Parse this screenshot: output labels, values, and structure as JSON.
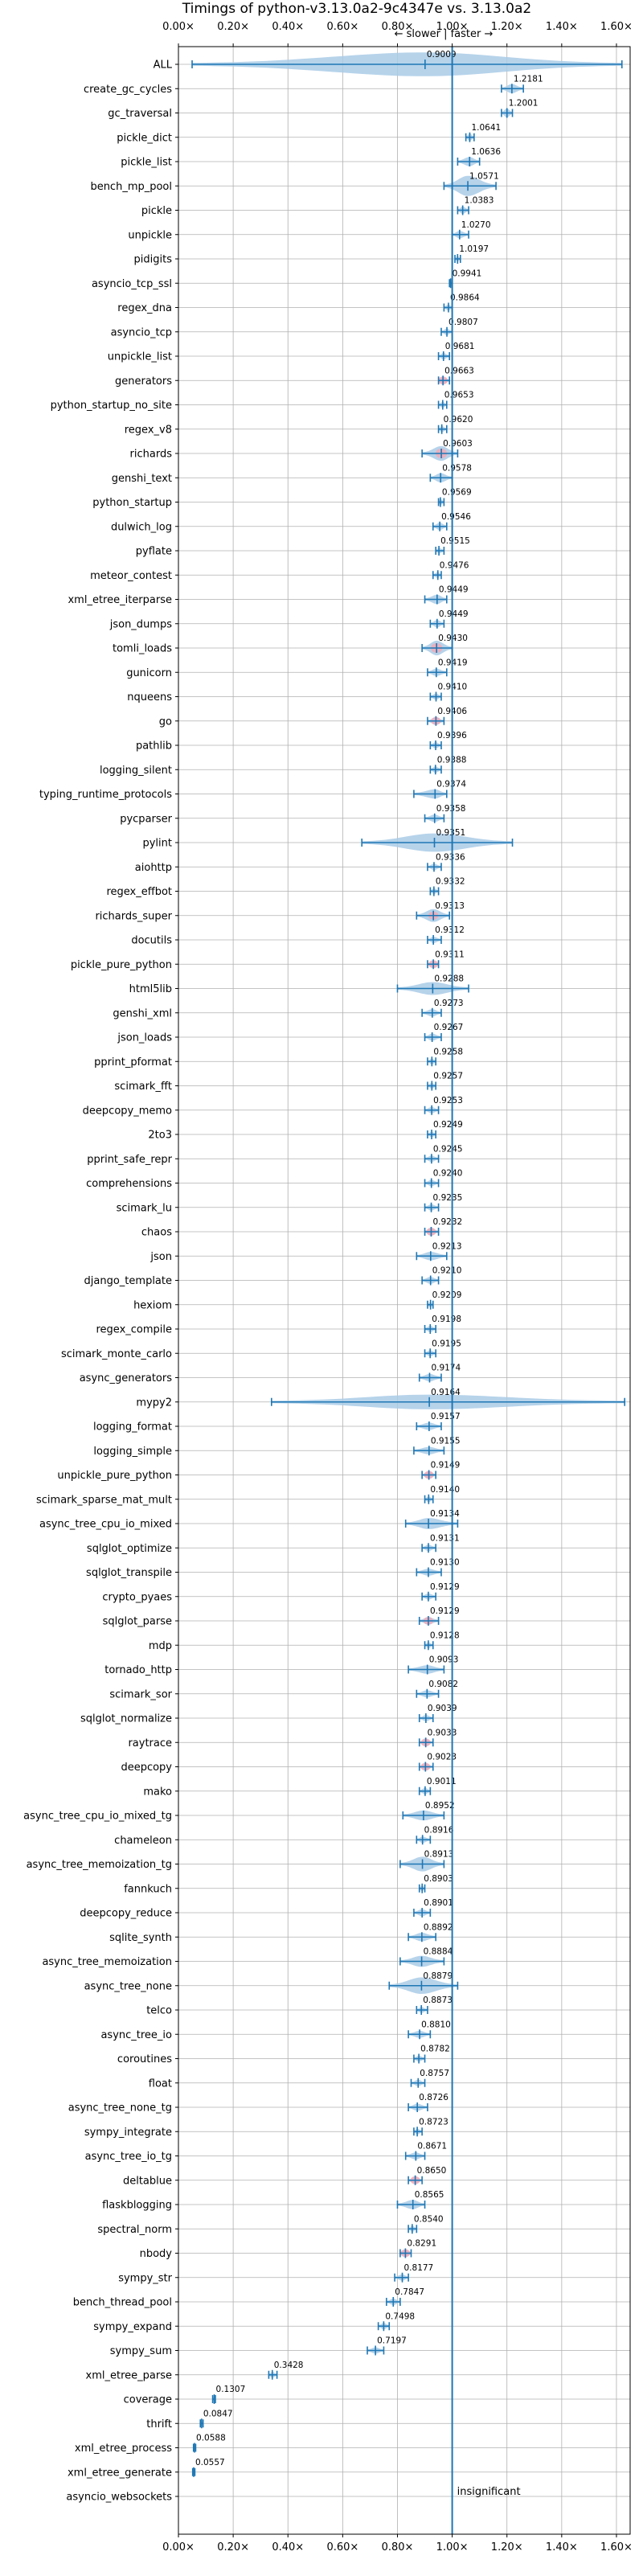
{
  "chart_data": {
    "type": "violin",
    "title": "Timings of python-v3.13.0a2-9c4347e vs. 3.13.0a2",
    "direction_label": "← slower | faster →",
    "xlim": [
      0.0,
      1.65
    ],
    "xticks": [
      "0.00×",
      "0.20×",
      "0.40×",
      "0.60×",
      "0.80×",
      "1.00×",
      "1.20×",
      "1.40×",
      "1.60×"
    ],
    "xtick_values": [
      0.0,
      0.2,
      0.4,
      0.6,
      0.8,
      1.0,
      1.2,
      1.4,
      1.6
    ],
    "reference_line": 1.0,
    "grid": true,
    "insignificant_label": "insignificant",
    "colors": {
      "violin": "#a9cbe6",
      "line": "#1f77b4",
      "highlight": "#f4a9b5",
      "grid": "#b0b0b0"
    },
    "benchmarks": [
      {
        "name": "ALL",
        "value": 0.9009,
        "label": "0.9009",
        "min": 0.05,
        "max": 1.62,
        "width": 0.06,
        "hl": false
      },
      {
        "name": "create_gc_cycles",
        "value": 1.2181,
        "label": "1.2181",
        "min": 1.18,
        "max": 1.26,
        "width": 0.02,
        "hl": false
      },
      {
        "name": "gc_traversal",
        "value": 1.2001,
        "label": "1.2001",
        "min": 1.18,
        "max": 1.22,
        "width": 0.02,
        "hl": false
      },
      {
        "name": "pickle_dict",
        "value": 1.0641,
        "label": "1.0641",
        "min": 1.05,
        "max": 1.08,
        "width": 0.015,
        "hl": false
      },
      {
        "name": "pickle_list",
        "value": 1.0636,
        "label": "1.0636",
        "min": 1.02,
        "max": 1.1,
        "width": 0.02,
        "hl": false
      },
      {
        "name": "bench_mp_pool",
        "value": 1.0571,
        "label": "1.0571",
        "min": 0.97,
        "max": 1.16,
        "width": 0.05,
        "hl": false
      },
      {
        "name": "pickle",
        "value": 1.0383,
        "label": "1.0383",
        "min": 1.02,
        "max": 1.06,
        "width": 0.015,
        "hl": false
      },
      {
        "name": "unpickle",
        "value": 1.027,
        "label": "1.0270",
        "min": 1.0,
        "max": 1.06,
        "width": 0.015,
        "hl": false
      },
      {
        "name": "pidigits",
        "value": 1.0197,
        "label": "1.0197",
        "min": 1.01,
        "max": 1.03,
        "width": 0.01,
        "hl": false
      },
      {
        "name": "asyncio_tcp_ssl",
        "value": 0.9941,
        "label": "0.9941",
        "min": 0.99,
        "max": 1.0,
        "width": 0.008,
        "hl": false
      },
      {
        "name": "regex_dna",
        "value": 0.9864,
        "label": "0.9864",
        "min": 0.97,
        "max": 1.0,
        "width": 0.01,
        "hl": false
      },
      {
        "name": "asyncio_tcp",
        "value": 0.9807,
        "label": "0.9807",
        "min": 0.96,
        "max": 1.0,
        "width": 0.012,
        "hl": false
      },
      {
        "name": "unpickle_list",
        "value": 0.9681,
        "label": "0.9681",
        "min": 0.95,
        "max": 0.99,
        "width": 0.012,
        "hl": false
      },
      {
        "name": "generators",
        "value": 0.9663,
        "label": "0.9663",
        "min": 0.95,
        "max": 0.99,
        "width": 0.014,
        "hl": true
      },
      {
        "name": "python_startup_no_site",
        "value": 0.9653,
        "label": "0.9653",
        "min": 0.95,
        "max": 0.98,
        "width": 0.01,
        "hl": false
      },
      {
        "name": "regex_v8",
        "value": 0.962,
        "label": "0.9620",
        "min": 0.95,
        "max": 0.98,
        "width": 0.01,
        "hl": false
      },
      {
        "name": "richards",
        "value": 0.9603,
        "label": "0.9603",
        "min": 0.89,
        "max": 1.02,
        "width": 0.035,
        "hl": true
      },
      {
        "name": "genshi_text",
        "value": 0.9578,
        "label": "0.9578",
        "min": 0.92,
        "max": 1.0,
        "width": 0.02,
        "hl": false
      },
      {
        "name": "python_startup",
        "value": 0.9569,
        "label": "0.9569",
        "min": 0.95,
        "max": 0.97,
        "width": 0.01,
        "hl": false
      },
      {
        "name": "dulwich_log",
        "value": 0.9546,
        "label": "0.9546",
        "min": 0.93,
        "max": 0.98,
        "width": 0.015,
        "hl": false
      },
      {
        "name": "pyflate",
        "value": 0.9515,
        "label": "0.9515",
        "min": 0.94,
        "max": 0.97,
        "width": 0.01,
        "hl": false
      },
      {
        "name": "meteor_contest",
        "value": 0.9476,
        "label": "0.9476",
        "min": 0.93,
        "max": 0.96,
        "width": 0.01,
        "hl": false
      },
      {
        "name": "xml_etree_iterparse",
        "value": 0.9449,
        "label": "0.9449",
        "min": 0.9,
        "max": 0.98,
        "width": 0.02,
        "hl": false
      },
      {
        "name": "json_dumps",
        "value": 0.9449,
        "label": "0.9449",
        "min": 0.92,
        "max": 0.97,
        "width": 0.015,
        "hl": false
      },
      {
        "name": "tomli_loads",
        "value": 0.943,
        "label": "0.9430",
        "min": 0.89,
        "max": 1.0,
        "width": 0.035,
        "hl": true
      },
      {
        "name": "gunicorn",
        "value": 0.9419,
        "label": "0.9419",
        "min": 0.91,
        "max": 0.98,
        "width": 0.015,
        "hl": false
      },
      {
        "name": "nqueens",
        "value": 0.941,
        "label": "0.9410",
        "min": 0.92,
        "max": 0.96,
        "width": 0.012,
        "hl": false
      },
      {
        "name": "go",
        "value": 0.9406,
        "label": "0.9406",
        "min": 0.91,
        "max": 0.97,
        "width": 0.015,
        "hl": true
      },
      {
        "name": "pathlib",
        "value": 0.9396,
        "label": "0.9396",
        "min": 0.92,
        "max": 0.96,
        "width": 0.012,
        "hl": false
      },
      {
        "name": "logging_silent",
        "value": 0.9388,
        "label": "0.9388",
        "min": 0.92,
        "max": 0.96,
        "width": 0.012,
        "hl": false
      },
      {
        "name": "typing_runtime_protocols",
        "value": 0.9374,
        "label": "0.9374",
        "min": 0.86,
        "max": 0.98,
        "width": 0.02,
        "hl": false
      },
      {
        "name": "pycparser",
        "value": 0.9358,
        "label": "0.9358",
        "min": 0.9,
        "max": 0.97,
        "width": 0.015,
        "hl": false
      },
      {
        "name": "pylint",
        "value": 0.9351,
        "label": "0.9351",
        "min": 0.67,
        "max": 1.22,
        "width": 0.045,
        "hl": false
      },
      {
        "name": "aiohttp",
        "value": 0.9336,
        "label": "0.9336",
        "min": 0.91,
        "max": 0.96,
        "width": 0.012,
        "hl": false
      },
      {
        "name": "regex_effbot",
        "value": 0.9332,
        "label": "0.9332",
        "min": 0.92,
        "max": 0.95,
        "width": 0.01,
        "hl": false
      },
      {
        "name": "richards_super",
        "value": 0.9313,
        "label": "0.9313",
        "min": 0.87,
        "max": 0.99,
        "width": 0.03,
        "hl": true
      },
      {
        "name": "docutils",
        "value": 0.9312,
        "label": "0.9312",
        "min": 0.91,
        "max": 0.96,
        "width": 0.012,
        "hl": false
      },
      {
        "name": "pickle_pure_python",
        "value": 0.9311,
        "label": "0.9311",
        "min": 0.91,
        "max": 0.95,
        "width": 0.012,
        "hl": true
      },
      {
        "name": "html5lib",
        "value": 0.9288,
        "label": "0.9288",
        "min": 0.8,
        "max": 1.06,
        "width": 0.03,
        "hl": false
      },
      {
        "name": "genshi_xml",
        "value": 0.9273,
        "label": "0.9273",
        "min": 0.89,
        "max": 0.96,
        "width": 0.015,
        "hl": false
      },
      {
        "name": "json_loads",
        "value": 0.9267,
        "label": "0.9267",
        "min": 0.9,
        "max": 0.96,
        "width": 0.014,
        "hl": false
      },
      {
        "name": "pprint_pformat",
        "value": 0.9258,
        "label": "0.9258",
        "min": 0.91,
        "max": 0.94,
        "width": 0.01,
        "hl": false
      },
      {
        "name": "scimark_fft",
        "value": 0.9257,
        "label": "0.9257",
        "min": 0.91,
        "max": 0.94,
        "width": 0.01,
        "hl": false
      },
      {
        "name": "deepcopy_memo",
        "value": 0.9253,
        "label": "0.9253",
        "min": 0.9,
        "max": 0.95,
        "width": 0.012,
        "hl": false
      },
      {
        "name": "2to3",
        "value": 0.9249,
        "label": "0.9249",
        "min": 0.91,
        "max": 0.94,
        "width": 0.01,
        "hl": false
      },
      {
        "name": "pprint_safe_repr",
        "value": 0.9245,
        "label": "0.9245",
        "min": 0.9,
        "max": 0.95,
        "width": 0.012,
        "hl": false
      },
      {
        "name": "comprehensions",
        "value": 0.924,
        "label": "0.9240",
        "min": 0.9,
        "max": 0.95,
        "width": 0.012,
        "hl": false
      },
      {
        "name": "scimark_lu",
        "value": 0.9235,
        "label": "0.9235",
        "min": 0.9,
        "max": 0.95,
        "width": 0.012,
        "hl": false
      },
      {
        "name": "chaos",
        "value": 0.9232,
        "label": "0.9232",
        "min": 0.9,
        "max": 0.95,
        "width": 0.015,
        "hl": true
      },
      {
        "name": "json",
        "value": 0.9213,
        "label": "0.9213",
        "min": 0.87,
        "max": 0.98,
        "width": 0.018,
        "hl": false
      },
      {
        "name": "django_template",
        "value": 0.921,
        "label": "0.9210",
        "min": 0.89,
        "max": 0.95,
        "width": 0.014,
        "hl": false
      },
      {
        "name": "hexiom",
        "value": 0.9209,
        "label": "0.9209",
        "min": 0.91,
        "max": 0.93,
        "width": 0.01,
        "hl": false
      },
      {
        "name": "regex_compile",
        "value": 0.9198,
        "label": "0.9198",
        "min": 0.9,
        "max": 0.94,
        "width": 0.012,
        "hl": false
      },
      {
        "name": "scimark_monte_carlo",
        "value": 0.9195,
        "label": "0.9195",
        "min": 0.9,
        "max": 0.94,
        "width": 0.012,
        "hl": false
      },
      {
        "name": "async_generators",
        "value": 0.9174,
        "label": "0.9174",
        "min": 0.88,
        "max": 0.96,
        "width": 0.015,
        "hl": false
      },
      {
        "name": "mypy2",
        "value": 0.9164,
        "label": "0.9164",
        "min": 0.34,
        "max": 1.63,
        "width": 0.035,
        "hl": false
      },
      {
        "name": "logging_format",
        "value": 0.9157,
        "label": "0.9157",
        "min": 0.87,
        "max": 0.96,
        "width": 0.015,
        "hl": false
      },
      {
        "name": "logging_simple",
        "value": 0.9155,
        "label": "0.9155",
        "min": 0.86,
        "max": 0.97,
        "width": 0.015,
        "hl": false
      },
      {
        "name": "unpickle_pure_python",
        "value": 0.9149,
        "label": "0.9149",
        "min": 0.89,
        "max": 0.94,
        "width": 0.014,
        "hl": true
      },
      {
        "name": "scimark_sparse_mat_mult",
        "value": 0.914,
        "label": "0.9140",
        "min": 0.9,
        "max": 0.93,
        "width": 0.01,
        "hl": false
      },
      {
        "name": "async_tree_cpu_io_mixed",
        "value": 0.9134,
        "label": "0.9134",
        "min": 0.83,
        "max": 1.02,
        "width": 0.025,
        "hl": false
      },
      {
        "name": "sqlglot_optimize",
        "value": 0.9131,
        "label": "0.9131",
        "min": 0.89,
        "max": 0.94,
        "width": 0.012,
        "hl": false
      },
      {
        "name": "sqlglot_transpile",
        "value": 0.913,
        "label": "0.9130",
        "min": 0.87,
        "max": 0.96,
        "width": 0.014,
        "hl": false
      },
      {
        "name": "crypto_pyaes",
        "value": 0.9129,
        "label": "0.9129",
        "min": 0.89,
        "max": 0.94,
        "width": 0.012,
        "hl": false
      },
      {
        "name": "sqlglot_parse",
        "value": 0.9129,
        "label": "0.9129",
        "min": 0.88,
        "max": 0.95,
        "width": 0.015,
        "hl": true
      },
      {
        "name": "mdp",
        "value": 0.9128,
        "label": "0.9128",
        "min": 0.9,
        "max": 0.93,
        "width": 0.01,
        "hl": false
      },
      {
        "name": "tornado_http",
        "value": 0.9093,
        "label": "0.9093",
        "min": 0.84,
        "max": 0.97,
        "width": 0.018,
        "hl": false
      },
      {
        "name": "scimark_sor",
        "value": 0.9082,
        "label": "0.9082",
        "min": 0.87,
        "max": 0.95,
        "width": 0.014,
        "hl": false
      },
      {
        "name": "sqlglot_normalize",
        "value": 0.9039,
        "label": "0.9039",
        "min": 0.88,
        "max": 0.93,
        "width": 0.012,
        "hl": false
      },
      {
        "name": "raytrace",
        "value": 0.9033,
        "label": "0.9033",
        "min": 0.88,
        "max": 0.93,
        "width": 0.012,
        "hl": true
      },
      {
        "name": "deepcopy",
        "value": 0.9023,
        "label": "0.9023",
        "min": 0.88,
        "max": 0.93,
        "width": 0.012,
        "hl": true
      },
      {
        "name": "mako",
        "value": 0.9011,
        "label": "0.9011",
        "min": 0.88,
        "max": 0.92,
        "width": 0.012,
        "hl": false
      },
      {
        "name": "async_tree_cpu_io_mixed_tg",
        "value": 0.8952,
        "label": "0.8952",
        "min": 0.82,
        "max": 0.97,
        "width": 0.022,
        "hl": false
      },
      {
        "name": "chameleon",
        "value": 0.8916,
        "label": "0.8916",
        "min": 0.87,
        "max": 0.92,
        "width": 0.012,
        "hl": false
      },
      {
        "name": "async_tree_memoization_tg",
        "value": 0.8913,
        "label": "0.8913",
        "min": 0.81,
        "max": 0.97,
        "width": 0.035,
        "hl": false
      },
      {
        "name": "fannkuch",
        "value": 0.8903,
        "label": "0.8903",
        "min": 0.88,
        "max": 0.9,
        "width": 0.01,
        "hl": false
      },
      {
        "name": "deepcopy_reduce",
        "value": 0.8901,
        "label": "0.8901",
        "min": 0.86,
        "max": 0.92,
        "width": 0.014,
        "hl": false
      },
      {
        "name": "sqlite_synth",
        "value": 0.8892,
        "label": "0.8892",
        "min": 0.84,
        "max": 0.94,
        "width": 0.018,
        "hl": false
      },
      {
        "name": "async_tree_memoization",
        "value": 0.8884,
        "label": "0.8884",
        "min": 0.81,
        "max": 0.97,
        "width": 0.025,
        "hl": false
      },
      {
        "name": "async_tree_none",
        "value": 0.8879,
        "label": "0.8879",
        "min": 0.77,
        "max": 1.02,
        "width": 0.04,
        "hl": false
      },
      {
        "name": "telco",
        "value": 0.8873,
        "label": "0.8873",
        "min": 0.87,
        "max": 0.91,
        "width": 0.01,
        "hl": false
      },
      {
        "name": "async_tree_io",
        "value": 0.881,
        "label": "0.8810",
        "min": 0.84,
        "max": 0.92,
        "width": 0.014,
        "hl": false
      },
      {
        "name": "coroutines",
        "value": 0.8782,
        "label": "0.8782",
        "min": 0.86,
        "max": 0.9,
        "width": 0.01,
        "hl": false
      },
      {
        "name": "float",
        "value": 0.8757,
        "label": "0.8757",
        "min": 0.85,
        "max": 0.9,
        "width": 0.012,
        "hl": false
      },
      {
        "name": "async_tree_none_tg",
        "value": 0.8726,
        "label": "0.8726",
        "min": 0.84,
        "max": 0.91,
        "width": 0.014,
        "hl": false
      },
      {
        "name": "sympy_integrate",
        "value": 0.8723,
        "label": "0.8723",
        "min": 0.86,
        "max": 0.89,
        "width": 0.01,
        "hl": false
      },
      {
        "name": "async_tree_io_tg",
        "value": 0.8671,
        "label": "0.8671",
        "min": 0.83,
        "max": 0.9,
        "width": 0.014,
        "hl": false
      },
      {
        "name": "deltablue",
        "value": 0.865,
        "label": "0.8650",
        "min": 0.84,
        "max": 0.89,
        "width": 0.014,
        "hl": true
      },
      {
        "name": "flaskblogging",
        "value": 0.8565,
        "label": "0.8565",
        "min": 0.8,
        "max": 0.9,
        "width": 0.02,
        "hl": false
      },
      {
        "name": "spectral_norm",
        "value": 0.854,
        "label": "0.8540",
        "min": 0.84,
        "max": 0.87,
        "width": 0.01,
        "hl": false
      },
      {
        "name": "nbody",
        "value": 0.8291,
        "label": "0.8291",
        "min": 0.81,
        "max": 0.85,
        "width": 0.014,
        "hl": true
      },
      {
        "name": "sympy_str",
        "value": 0.8177,
        "label": "0.8177",
        "min": 0.79,
        "max": 0.84,
        "width": 0.012,
        "hl": false
      },
      {
        "name": "bench_thread_pool",
        "value": 0.7847,
        "label": "0.7847",
        "min": 0.76,
        "max": 0.81,
        "width": 0.012,
        "hl": false
      },
      {
        "name": "sympy_expand",
        "value": 0.7498,
        "label": "0.7498",
        "min": 0.73,
        "max": 0.77,
        "width": 0.012,
        "hl": false
      },
      {
        "name": "sympy_sum",
        "value": 0.7197,
        "label": "0.7197",
        "min": 0.69,
        "max": 0.75,
        "width": 0.012,
        "hl": false
      },
      {
        "name": "xml_etree_parse",
        "value": 0.3428,
        "label": "0.3428",
        "min": 0.33,
        "max": 0.36,
        "width": 0.01,
        "hl": false
      },
      {
        "name": "coverage",
        "value": 0.1307,
        "label": "0.1307",
        "min": 0.125,
        "max": 0.135,
        "width": 0.006,
        "hl": false
      },
      {
        "name": "thrift",
        "value": 0.0847,
        "label": "0.0847",
        "min": 0.08,
        "max": 0.09,
        "width": 0.006,
        "hl": false
      },
      {
        "name": "xml_etree_process",
        "value": 0.0588,
        "label": "0.0588",
        "min": 0.055,
        "max": 0.063,
        "width": 0.006,
        "hl": false
      },
      {
        "name": "xml_etree_generate",
        "value": 0.0557,
        "label": "0.0557",
        "min": 0.052,
        "max": 0.06,
        "width": 0.006,
        "hl": false
      },
      {
        "name": "asyncio_websockets",
        "value": null,
        "label": "",
        "min": null,
        "max": null,
        "width": 0,
        "hl": false
      }
    ]
  }
}
